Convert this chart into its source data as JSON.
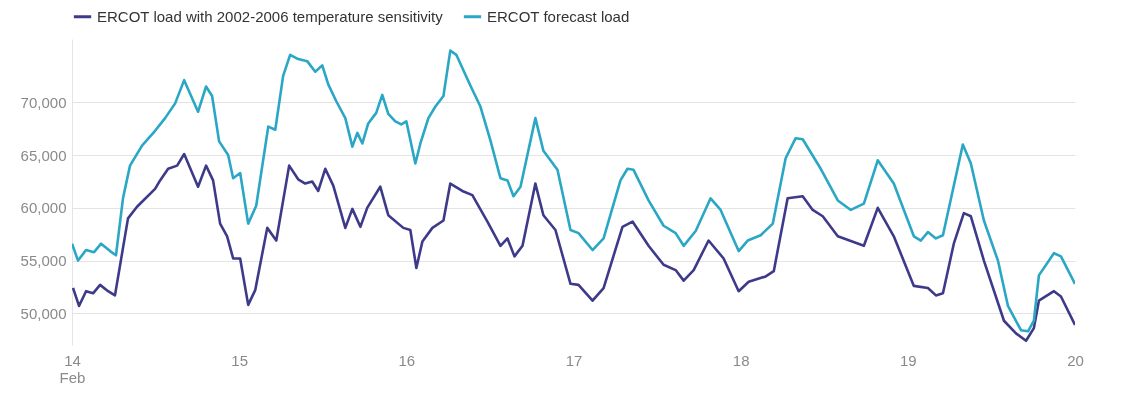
{
  "chart_data": {
    "type": "line",
    "legend": "top left",
    "grid": "y",
    "line_style": "solid",
    "xlim": [
      14,
      20
    ],
    "ylim": [
      47000,
      76000
    ],
    "xticks": [
      {
        "value": 14,
        "label": "14\nFeb"
      },
      15,
      16,
      17,
      18,
      19,
      20
    ],
    "yticks": [
      {
        "value": 50000,
        "label": "50,000"
      },
      {
        "value": 55000,
        "label": "55,000"
      },
      {
        "value": 60000,
        "label": "60,000"
      },
      {
        "value": 65000,
        "label": "65,000"
      },
      {
        "value": 70000,
        "label": "70,000"
      }
    ],
    "series": [
      {
        "name": "ERCOT load with 2002-2006 temperature sensitivity",
        "color": "#3e3a8a",
        "x": [
          14.006,
          14.042,
          14.084,
          14.126,
          14.168,
          14.216,
          14.257,
          14.335,
          14.389,
          14.497,
          14.527,
          14.575,
          14.629,
          14.671,
          14.754,
          14.802,
          14.844,
          14.886,
          14.928,
          14.964,
          15.006,
          15.054,
          15.096,
          15.168,
          15.222,
          15.299,
          15.353,
          15.395,
          15.437,
          15.473,
          15.515,
          15.563,
          15.635,
          15.677,
          15.725,
          15.766,
          15.844,
          15.892,
          15.982,
          16.024,
          16.06,
          16.096,
          16.156,
          16.222,
          16.263,
          16.335,
          16.395,
          16.485,
          16.563,
          16.605,
          16.647,
          16.695,
          16.772,
          16.82,
          16.892,
          16.982,
          17.03,
          17.114,
          17.18,
          17.293,
          17.353,
          17.449,
          17.539,
          17.611,
          17.659,
          17.719,
          17.808,
          17.898,
          17.988,
          18.048,
          18.15,
          18.198,
          18.281,
          18.371,
          18.431,
          18.491,
          18.581,
          18.737,
          18.82,
          18.916,
          19.036,
          19.12,
          19.168,
          19.21,
          19.275,
          19.335,
          19.377,
          19.455,
          19.575,
          19.647,
          19.707,
          19.754,
          19.784,
          19.874,
          19.916,
          20.0
        ],
        "values": [
          52400,
          50700,
          52100,
          51900,
          52700,
          52100,
          51700,
          59000,
          60100,
          61800,
          62600,
          63700,
          64000,
          65100,
          62000,
          64000,
          62600,
          58500,
          57300,
          55200,
          55200,
          50800,
          52200,
          58100,
          56900,
          64000,
          62700,
          62300,
          62500,
          61600,
          63700,
          62100,
          58100,
          59900,
          58200,
          60000,
          62000,
          59300,
          58100,
          57900,
          54300,
          56800,
          58100,
          58800,
          62300,
          61600,
          61200,
          58700,
          56400,
          57100,
          55400,
          56400,
          62300,
          59300,
          57900,
          52800,
          52700,
          51200,
          52400,
          58200,
          58700,
          56400,
          54600,
          54100,
          53100,
          54100,
          56900,
          55200,
          52100,
          53000,
          53500,
          54000,
          60900,
          61100,
          59800,
          59200,
          57300,
          56400,
          60000,
          57300,
          52600,
          52400,
          51700,
          51900,
          56600,
          59500,
          59200,
          55000,
          49300,
          48100,
          47400,
          48600,
          51200,
          52100,
          51600,
          48900
        ]
      },
      {
        "name": "ERCOT forecast load",
        "color": "#2aa7c4",
        "x": [
          14.0,
          14.036,
          14.084,
          14.132,
          14.174,
          14.228,
          14.263,
          14.305,
          14.347,
          14.419,
          14.497,
          14.557,
          14.617,
          14.671,
          14.754,
          14.802,
          14.838,
          14.88,
          14.934,
          14.964,
          15.006,
          15.054,
          15.102,
          15.174,
          15.216,
          15.263,
          15.305,
          15.353,
          15.407,
          15.455,
          15.497,
          15.533,
          15.581,
          15.635,
          15.677,
          15.707,
          15.737,
          15.772,
          15.82,
          15.856,
          15.892,
          15.934,
          15.97,
          16.0,
          16.054,
          16.084,
          16.132,
          16.174,
          16.222,
          16.263,
          16.299,
          16.383,
          16.443,
          16.503,
          16.563,
          16.605,
          16.641,
          16.683,
          16.772,
          16.82,
          16.904,
          16.982,
          17.03,
          17.114,
          17.18,
          17.281,
          17.323,
          17.359,
          17.449,
          17.539,
          17.611,
          17.659,
          17.731,
          17.82,
          17.88,
          17.988,
          18.042,
          18.12,
          18.192,
          18.269,
          18.329,
          18.371,
          18.479,
          18.581,
          18.659,
          18.737,
          18.82,
          18.916,
          19.036,
          19.078,
          19.12,
          19.168,
          19.21,
          19.329,
          19.377,
          19.455,
          19.539,
          19.599,
          19.677,
          19.719,
          19.754,
          19.784,
          19.874,
          19.916,
          20.0
        ],
        "values": [
          56600,
          55000,
          56000,
          55800,
          56600,
          55900,
          55500,
          60900,
          64000,
          65900,
          67300,
          68500,
          69900,
          72100,
          69100,
          71500,
          70600,
          66300,
          65000,
          62800,
          63300,
          58500,
          60200,
          67700,
          67400,
          72500,
          74500,
          74100,
          73900,
          72900,
          73500,
          71700,
          70100,
          68500,
          65800,
          67100,
          66100,
          68000,
          69000,
          70700,
          68900,
          68200,
          67900,
          68200,
          64200,
          66100,
          68500,
          69600,
          70600,
          74900,
          74500,
          71600,
          69600,
          66400,
          62800,
          62600,
          61100,
          62000,
          68500,
          65400,
          63600,
          57900,
          57600,
          56000,
          57100,
          62600,
          63700,
          63600,
          60700,
          58300,
          57600,
          56400,
          57800,
          60900,
          59800,
          55900,
          56900,
          57400,
          58500,
          64700,
          66600,
          66500,
          63700,
          60700,
          59800,
          60400,
          64500,
          62300,
          57300,
          56900,
          57700,
          57100,
          57400,
          66000,
          64200,
          58800,
          55000,
          50700,
          48400,
          48300,
          49300,
          53600,
          55700,
          55400,
          52800
        ]
      }
    ]
  }
}
